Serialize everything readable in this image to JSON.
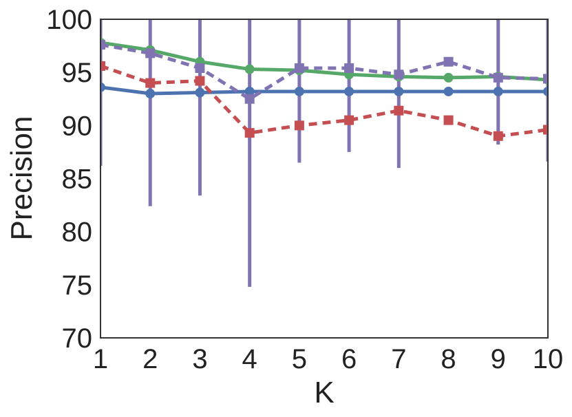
{
  "chart_data": {
    "type": "line",
    "title": "",
    "xlabel": "K",
    "ylabel": "Precision",
    "x": [
      1,
      2,
      3,
      4,
      5,
      6,
      7,
      8,
      9,
      10
    ],
    "xlim": [
      1,
      10
    ],
    "ylim": [
      70,
      100
    ],
    "xticks": [
      "1",
      "2",
      "3",
      "4",
      "5",
      "6",
      "7",
      "8",
      "9",
      "10"
    ],
    "yticks": [
      "70",
      "75",
      "80",
      "85",
      "90",
      "95",
      "100"
    ],
    "grid": false,
    "legend": "none",
    "series": [
      {
        "color": "#4c72b0",
        "line_style": "solid",
        "marker": "circle",
        "values": [
          93.6,
          93.0,
          93.1,
          93.2,
          93.2,
          93.2,
          93.2,
          93.2,
          93.2,
          93.2
        ]
      },
      {
        "color": "#55a868",
        "line_style": "solid",
        "marker": "circle",
        "values": [
          97.8,
          97.1,
          96.0,
          95.3,
          95.2,
          94.8,
          94.6,
          94.5,
          94.6,
          94.3
        ]
      },
      {
        "color": "#c44e52",
        "line_style": "dashed",
        "marker": "square",
        "values": [
          95.6,
          94.0,
          94.2,
          89.3,
          90.0,
          90.5,
          91.4,
          90.5,
          89.0,
          89.6
        ]
      },
      {
        "color": "#8172b2",
        "line_style": "dashed",
        "marker": "square",
        "values": [
          97.6,
          96.8,
          95.4,
          92.5,
          95.4,
          95.4,
          94.8,
          96.0,
          94.5,
          94.4
        ],
        "error_low": [
          86.2,
          82.4,
          83.4,
          74.8,
          86.5,
          87.5,
          86.0,
          100.0,
          88.2,
          86.6
        ],
        "error_high": [
          100.0,
          100.0,
          100.0,
          100.0,
          100.0,
          100.0,
          100.0,
          100.0,
          100.0,
          100.0
        ]
      }
    ]
  }
}
